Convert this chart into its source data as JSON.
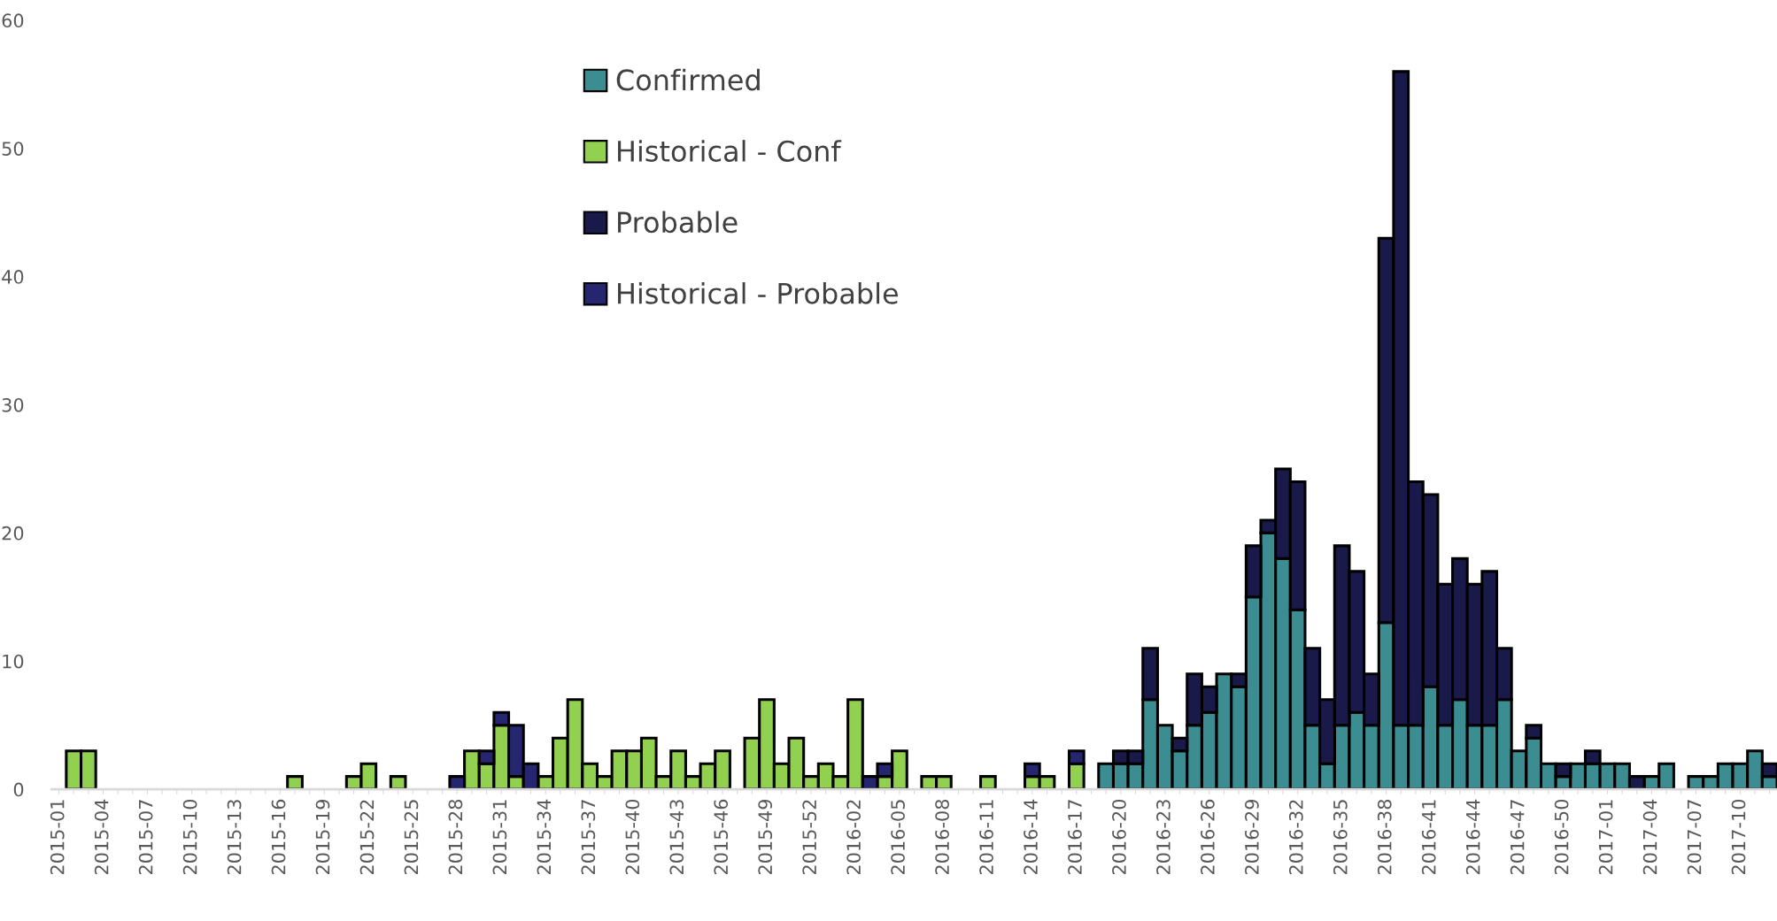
{
  "chart_data": {
    "type": "bar",
    "stacked": true,
    "categories": [
      "2015-01",
      null,
      null,
      "2015-04",
      null,
      null,
      "2015-07",
      null,
      null,
      "2015-10",
      null,
      null,
      "2015-13",
      null,
      null,
      "2015-16",
      null,
      null,
      "2015-19",
      null,
      null,
      "2015-22",
      null,
      null,
      "2015-25",
      null,
      null,
      "2015-28",
      null,
      null,
      "2015-31",
      null,
      null,
      "2015-34",
      null,
      null,
      "2015-37",
      null,
      null,
      "2015-40",
      null,
      null,
      "2015-43",
      null,
      null,
      "2015-46",
      null,
      null,
      "2015-49",
      null,
      null,
      "2015-52",
      null,
      null,
      "2016-02",
      null,
      null,
      "2016-05",
      null,
      null,
      "2016-08",
      null,
      null,
      "2016-11",
      null,
      null,
      "2016-14",
      null,
      null,
      "2016-17",
      null,
      null,
      "2016-20",
      null,
      null,
      "2016-23",
      null,
      null,
      "2016-26",
      null,
      null,
      "2016-29",
      null,
      null,
      "2016-32",
      null,
      null,
      "2016-35",
      null,
      null,
      "2016-38",
      null,
      null,
      "2016-41",
      null,
      null,
      "2016-44",
      null,
      null,
      "2016-47",
      null,
      null,
      "2016-50",
      null,
      null,
      "2017-01",
      null,
      null,
      "2017-04",
      null,
      null,
      "2017-07",
      null,
      null,
      "2017-10",
      null,
      null
    ],
    "series": [
      {
        "name": "Confirmed",
        "color": "#3b8d91",
        "values": [
          null,
          null,
          null,
          null,
          null,
          null,
          null,
          null,
          null,
          null,
          null,
          null,
          null,
          null,
          null,
          null,
          null,
          null,
          null,
          null,
          null,
          null,
          null,
          null,
          null,
          null,
          null,
          null,
          null,
          null,
          null,
          null,
          null,
          null,
          null,
          null,
          null,
          null,
          null,
          null,
          null,
          null,
          null,
          null,
          null,
          null,
          null,
          null,
          null,
          null,
          null,
          null,
          null,
          null,
          null,
          null,
          null,
          null,
          null,
          null,
          null,
          null,
          null,
          null,
          null,
          null,
          null,
          null,
          null,
          null,
          null,
          2,
          2,
          2,
          7,
          5,
          3,
          5,
          6,
          9,
          8,
          15,
          20,
          18,
          14,
          5,
          2,
          5,
          6,
          5,
          13,
          5,
          5,
          8,
          5,
          7,
          5,
          5,
          7,
          3,
          4,
          2,
          1,
          2,
          2,
          2,
          2,
          null,
          1,
          2,
          null,
          1,
          1,
          2,
          2,
          3,
          1
        ]
      },
      {
        "name": "Historical - Conf",
        "color": "#92d050",
        "values": [
          null,
          3,
          3,
          null,
          null,
          null,
          null,
          null,
          null,
          null,
          null,
          null,
          null,
          null,
          null,
          null,
          1,
          null,
          null,
          null,
          1,
          2,
          null,
          1,
          null,
          null,
          null,
          null,
          3,
          2,
          5,
          1,
          null,
          1,
          4,
          7,
          2,
          1,
          3,
          3,
          4,
          1,
          3,
          1,
          2,
          3,
          null,
          4,
          7,
          2,
          4,
          1,
          2,
          1,
          7,
          null,
          1,
          3,
          null,
          1,
          1,
          null,
          null,
          1,
          null,
          null,
          1,
          1,
          null,
          2,
          null,
          null,
          null,
          null,
          null,
          null,
          null,
          null,
          null,
          null,
          null,
          null,
          null,
          null,
          null,
          null,
          null,
          null,
          null,
          null,
          null,
          null,
          null,
          null,
          null,
          null,
          null,
          null,
          null,
          null,
          null,
          null,
          null,
          null,
          null,
          null,
          null,
          null,
          null,
          null,
          null,
          null,
          null,
          null,
          null,
          null,
          null
        ]
      },
      {
        "name": "Probable",
        "color": "#1a1a4a",
        "values": [
          null,
          null,
          null,
          null,
          null,
          null,
          null,
          null,
          null,
          null,
          null,
          null,
          null,
          null,
          null,
          null,
          null,
          null,
          null,
          null,
          null,
          null,
          null,
          null,
          null,
          null,
          null,
          null,
          null,
          null,
          null,
          null,
          null,
          null,
          null,
          null,
          null,
          null,
          null,
          null,
          null,
          null,
          null,
          null,
          null,
          null,
          null,
          null,
          null,
          null,
          null,
          null,
          null,
          null,
          null,
          null,
          null,
          null,
          null,
          null,
          null,
          null,
          null,
          null,
          null,
          null,
          null,
          null,
          null,
          null,
          null,
          null,
          1,
          1,
          4,
          null,
          1,
          4,
          2,
          null,
          1,
          4,
          1,
          7,
          10,
          6,
          5,
          14,
          11,
          4,
          30,
          51,
          19,
          15,
          11,
          11,
          11,
          12,
          4,
          null,
          1,
          null,
          1,
          null,
          1,
          null,
          null,
          1,
          null,
          null,
          null,
          null,
          null,
          null,
          null,
          null,
          1
        ]
      },
      {
        "name": "Historical - Probable",
        "color": "#262670",
        "values": [
          null,
          null,
          null,
          null,
          null,
          null,
          null,
          null,
          null,
          null,
          null,
          null,
          null,
          null,
          null,
          null,
          null,
          null,
          null,
          null,
          null,
          null,
          null,
          null,
          null,
          null,
          null,
          1,
          null,
          1,
          1,
          4,
          2,
          null,
          null,
          null,
          null,
          null,
          null,
          null,
          null,
          null,
          null,
          null,
          null,
          null,
          null,
          null,
          null,
          null,
          null,
          null,
          null,
          null,
          null,
          1,
          1,
          null,
          null,
          null,
          null,
          null,
          null,
          null,
          null,
          null,
          1,
          null,
          null,
          1,
          null,
          null,
          null,
          null,
          null,
          null,
          null,
          null,
          null,
          null,
          null,
          null,
          null,
          null,
          null,
          null,
          null,
          null,
          null,
          null,
          null,
          null,
          null,
          null,
          null,
          null,
          null,
          null,
          null,
          null,
          null,
          null,
          null,
          null,
          null,
          null,
          null,
          null,
          null,
          null,
          null,
          null,
          null,
          null,
          null,
          null,
          null
        ]
      }
    ],
    "ylim": [
      0,
      60
    ],
    "yticks": [
      0,
      10,
      20,
      30,
      40,
      50,
      60
    ],
    "grid": false,
    "legend": "top"
  }
}
